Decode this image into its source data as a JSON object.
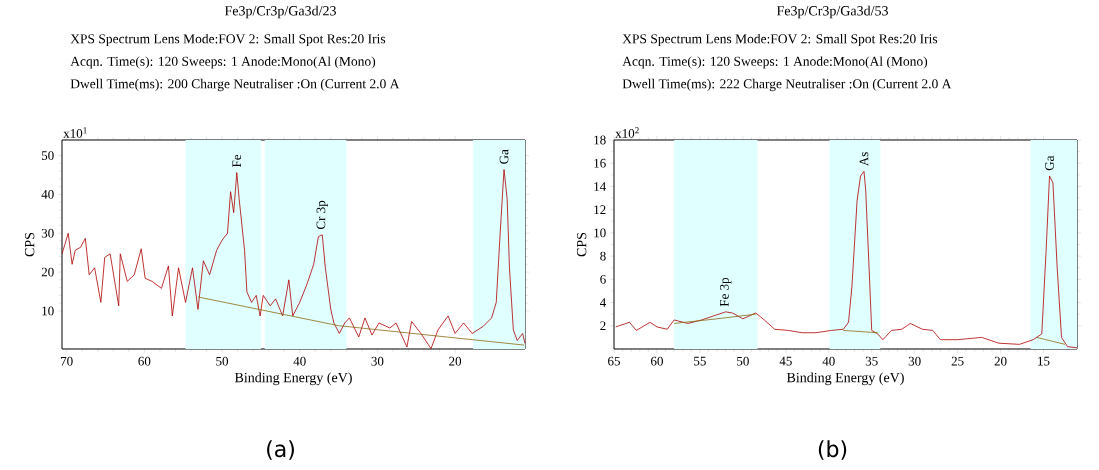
{
  "chart_data": [
    {
      "type": "line",
      "title": "Fe3p/Cr3p/Ga3d/23",
      "subtitle": "XPS Spectrum Lens Mode:FOV 2: Small Spot Res:20 Iris",
      "xlabel": "Binding Energy (eV)",
      "ylabel": "CPS",
      "xlim": [
        70.6,
        11.0
      ],
      "ylim": [
        0.2,
        54
      ],
      "xticks": [
        70,
        60,
        50,
        40,
        30,
        20
      ],
      "yticks": [
        10,
        20,
        30,
        40,
        50
      ],
      "bands": [
        {
          "axis": "x",
          "from": 54.7,
          "to": 45.0,
          "color": "#e0ffff",
          "label": "Fe"
        },
        {
          "axis": "x",
          "from": 44.5,
          "to": 34.0,
          "color": "#e0ffff",
          "label": "Cr 3p"
        },
        {
          "axis": "x",
          "from": 17.7,
          "to": 11.0,
          "color": "#e0ffff",
          "label": "Ga"
        }
      ],
      "annotations": [
        "Acqn. Time(s): 120 Sweeps: 1 Anode:Mono(Al (Mono)",
        "Dwell Time(ms): 200 Charge Neutraliser :On (Current 2.0 A",
        "x10$^{1}$",
        "(a)"
      ],
      "series": [
        {
          "color": "#b00000",
          "x": [
            70.6,
            70.2,
            69.8,
            69.3,
            68.9,
            68.2,
            67.6,
            67.1,
            66.4,
            65.6,
            65.1,
            64.4,
            63.3,
            63.1,
            62.2,
            61.3,
            60.4,
            59.9,
            59.0,
            57.8,
            56.9,
            56.4,
            55.6,
            54.7,
            53.8,
            53.1,
            52.4,
            51.6,
            50.7,
            50.0,
            49.3,
            48.9,
            48.5,
            48.1,
            47.8,
            47.1,
            46.8,
            46.2,
            45.6,
            45.1,
            44.7,
            43.8,
            43.1,
            42.2,
            41.4,
            40.9,
            40.0,
            39.1,
            38.2,
            37.6,
            37.1,
            36.7,
            36.0,
            35.6,
            34.9,
            34.2,
            33.6,
            32.4,
            31.6,
            30.7,
            29.8,
            28.4,
            27.6,
            26.2,
            25.6,
            24.4,
            23.1,
            22.2,
            20.9,
            20.0,
            18.9,
            17.8,
            16.4,
            15.3,
            14.7,
            14.2,
            13.7,
            13.3,
            13.0,
            12.5,
            12.0,
            11.3,
            11.0
          ],
          "values": [
            24.7,
            27.3,
            30,
            22,
            25.6,
            26.4,
            28.7,
            19.3,
            21.1,
            12.2,
            23.8,
            24.7,
            11.3,
            24.7,
            17.6,
            19.3,
            26,
            18.4,
            17.6,
            15.8,
            21.6,
            8.7,
            21.1,
            12.2,
            21.1,
            10.4,
            22.9,
            19.3,
            25.6,
            28.2,
            30,
            40.7,
            35.3,
            45.6,
            38.9,
            25.6,
            14.9,
            12.2,
            14,
            8.7,
            14,
            11.3,
            13.1,
            8.7,
            18,
            8.7,
            12.2,
            16.7,
            22,
            29.1,
            29.6,
            21.1,
            10.4,
            6.9,
            4.2,
            6.9,
            8.2,
            3.3,
            8.2,
            3.8,
            6.9,
            5.6,
            6.9,
            0.7,
            7.3,
            4.2,
            0.3,
            5.1,
            8.7,
            4.2,
            6.9,
            4.2,
            6,
            8.2,
            12.2,
            30,
            46.4,
            38.9,
            21.1,
            5.1,
            2.4,
            4.2,
            1.6
          ]
        },
        {
          "color": "#8b6914",
          "x": [
            53.1,
            35.0,
            11.1
          ],
          "values": [
            13.6,
            6.2,
            1.2
          ]
        }
      ]
    },
    {
      "type": "line",
      "title": "Fe3p/Cr3p/Ga3d/53",
      "subtitle": "XPS Spectrum Lens Mode:FOV 2: Small Spot Res:20 Iris",
      "xlabel": "Binding Energy (eV)",
      "ylabel": "CPS",
      "xlim": [
        65,
        11.1
      ],
      "ylim": [
        0,
        18
      ],
      "xticks": [
        65,
        60,
        55,
        50,
        45,
        40,
        35,
        30,
        25,
        20,
        15
      ],
      "yticks": [
        2,
        4,
        6,
        8,
        10,
        12,
        14,
        16,
        18
      ],
      "bands": [
        {
          "axis": "x",
          "from": 58.0,
          "to": 48.3,
          "color": "#e0ffff",
          "label": "Fe 3p"
        },
        {
          "axis": "x",
          "from": 39.9,
          "to": 34.0,
          "color": "#e0ffff",
          "label": "As"
        },
        {
          "axis": "x",
          "from": 16.5,
          "to": 11.1,
          "color": "#e0ffff",
          "label": "Ga"
        }
      ],
      "annotations": [
        "Acqn. Time(s): 120 Sweeps: 1 Anode:Mono(Al (Mono)",
        "Dwell Time(ms): 222 Charge Neutraliser :On (Current 2.0 A",
        "x10$^{2}$",
        "(b)"
      ],
      "series": [
        {
          "color": "#b00000",
          "x": [
            64.8,
            63.2,
            62.4,
            60.8,
            60.0,
            58.8,
            58.0,
            56.4,
            54.8,
            53.2,
            52.0,
            51.2,
            50.0,
            48.5,
            47.5,
            46.3,
            44.7,
            43.1,
            41.5,
            39.7,
            38.3,
            37.7,
            37.3,
            36.7,
            36.3,
            35.9,
            35.7,
            35.3,
            35.0,
            34.3,
            33.7,
            32.7,
            31.5,
            30.5,
            29.1,
            27.9,
            27.0,
            25.0,
            22.2,
            20.2,
            17.8,
            16.2,
            15.2,
            14.7,
            14.3,
            13.9,
            13.4,
            12.9,
            12.2,
            11.1
          ],
          "values": [
            1.9,
            2.3,
            1.6,
            2.3,
            1.9,
            1.7,
            2.5,
            2.2,
            2.5,
            2.9,
            3.2,
            3.1,
            2.6,
            3.1,
            2.5,
            1.7,
            1.6,
            1.4,
            1.4,
            1.6,
            1.7,
            2.3,
            5.4,
            12.8,
            14.9,
            15.3,
            13.7,
            6.9,
            1.6,
            1.3,
            0.8,
            1.6,
            1.7,
            2.2,
            1.7,
            1.6,
            0.8,
            0.8,
            1.0,
            0.5,
            0.4,
            0.8,
            1.3,
            8.4,
            14.9,
            14.3,
            6.9,
            1.0,
            0.2,
            0.1
          ]
        },
        {
          "color": "#8b6914",
          "x": [
            58.0,
            53.0,
            48.5,
            43.0,
            38.3,
            34.3,
            20.0,
            15.8,
            12.5
          ],
          "values": [
            2.2,
            2.6,
            3.0,
            null,
            1.6,
            1.4,
            null,
            1.0,
            0.4
          ]
        }
      ]
    }
  ]
}
